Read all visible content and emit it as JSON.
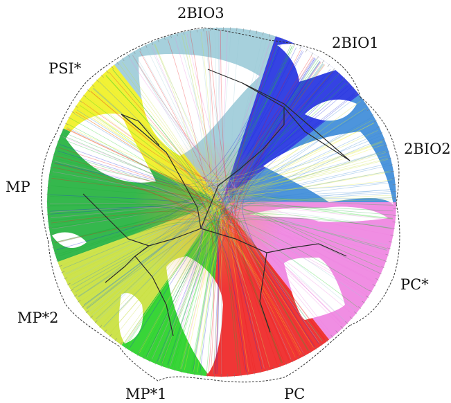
{
  "diagram": {
    "groups": [
      {
        "id": "2bio3",
        "label": "2BIO3",
        "color": "#9ccbd8"
      },
      {
        "id": "2bio1",
        "label": "2BIO1",
        "color": "#1f2fe0"
      },
      {
        "id": "2bio2",
        "label": "2BIO2",
        "color": "#3a8ad8"
      },
      {
        "id": "pc-star",
        "label": "PC*",
        "color": "#ee82e0"
      },
      {
        "id": "pc",
        "label": "PC",
        "color": "#ee2020"
      },
      {
        "id": "mp1",
        "label": "MP*1",
        "color": "#22d022"
      },
      {
        "id": "mp2",
        "label": "MP*2",
        "color": "#c8e03a"
      },
      {
        "id": "mp",
        "label": "MP",
        "color": "#1fb03a"
      },
      {
        "id": "psi",
        "label": "PSI*",
        "color": "#f0f020"
      }
    ]
  }
}
